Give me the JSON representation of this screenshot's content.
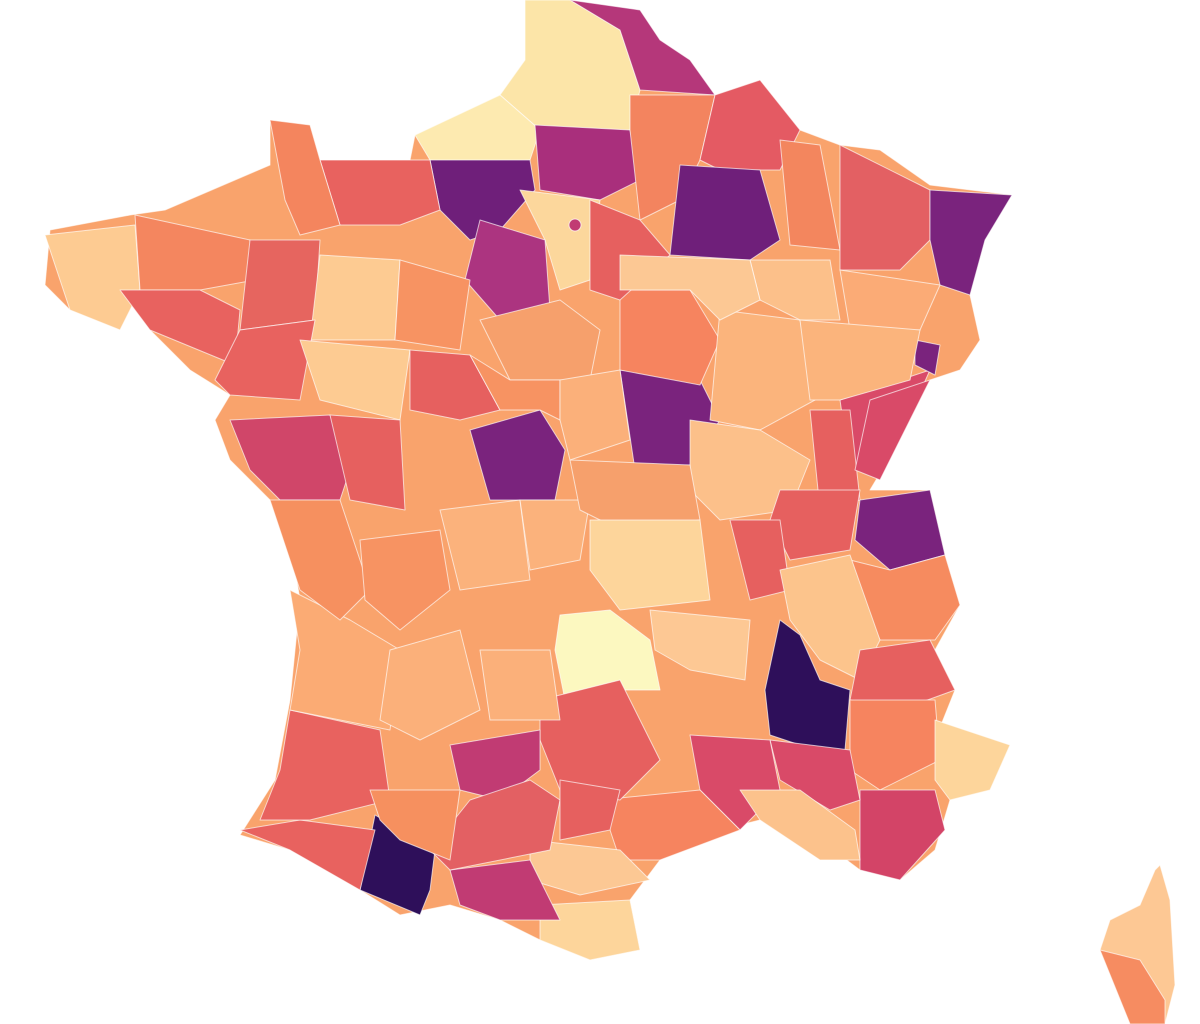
{
  "map": {
    "type": "choropleth",
    "colormap": "magma",
    "background": "#ffffff",
    "base_fill": "#f9a36c",
    "corsica_fill": "#fdc894",
    "department_fills": [
      "#fce5a8",
      "#b5377a",
      "#fdeab0",
      "#a92f7c",
      "#f3845f",
      "#e45a63",
      "#6f1f7a",
      "#e8625f",
      "#f4855e",
      "#fcd79c",
      "#6f1f7a",
      "#f3865e",
      "#e36063",
      "#7a237d",
      "#ac3480",
      "#fdcb92",
      "#f4865f",
      "#e8625f",
      "#e6655f",
      "#fdcb92",
      "#f79362",
      "#e8625f",
      "#fdcb92",
      "#d04669",
      "#e6605f",
      "#e6605f",
      "#7a237d",
      "#7a237d",
      "#f6845f",
      "#fbb47c",
      "#d94a68",
      "#e6605f",
      "#fcc08a",
      "#e6605f",
      "#7a237d",
      "#f68b5f",
      "#e6605f",
      "#fcc48c",
      "#2e0f5a",
      "#e6605f",
      "#f6845f",
      "#fdd59b",
      "#d34467",
      "#d94a68",
      "#d94a68",
      "#fcc28c",
      "#f6845f",
      "#fcc894",
      "#fdd59b",
      "#c13b73",
      "#2e0f5a",
      "#e8625f",
      "#e8625f",
      "#fbab74",
      "#f6905f",
      "#f79362",
      "#fbb27c",
      "#fbb27c",
      "#f6a06c",
      "#fdd59b",
      "#fcf8c0",
      "#fdc894",
      "#e6605f",
      "#c13b73",
      "#e36063",
      "#e6605f",
      "#f6905f",
      "#fbb07a",
      "#fbb07a",
      "#f68c61",
      "#f6a06c",
      "#f79362",
      "#fbb07a",
      "#fcc08a",
      "#fbab76",
      "#7a237d",
      "#fbb47c",
      "#e6605f",
      "#fcc894",
      "#d94a68"
    ]
  }
}
